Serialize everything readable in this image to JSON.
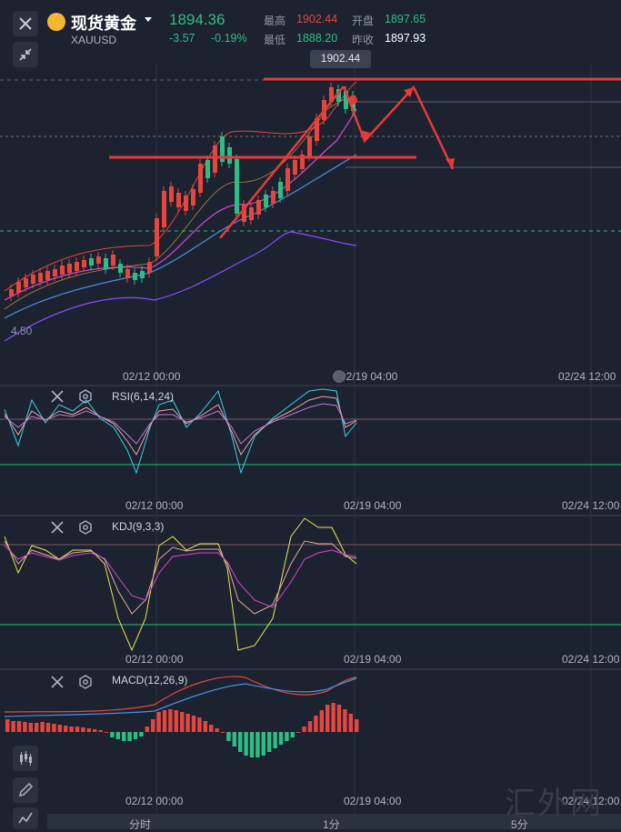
{
  "header": {
    "close_icon": "close-icon",
    "collapse_icon": "collapse-arrows-icon",
    "title": "现货黄金",
    "symbol": "XAUUSD",
    "price": "1894.36",
    "change": "-3.57",
    "change_pct": "-0.19%",
    "high_label": "最高",
    "high_value": "1902.44",
    "open_label": "开盘",
    "open_value": "1897.65",
    "low_label": "最低",
    "low_value": "1888.20",
    "prev_label": "昨收",
    "prev_value": "1897.93"
  },
  "main_chart": {
    "high_marker": "1902.44",
    "left_axis_label": "4.50",
    "ticks": [
      "02/12 00:00",
      "02/19 04:00",
      "02/24 12:00"
    ]
  },
  "rsi": {
    "label": "RSI(6,14,24)",
    "ticks": [
      "02/12 00:00",
      "02/19 04:00",
      "02/24 12:00"
    ]
  },
  "kdj": {
    "label": "KDJ(9,3,3)",
    "ticks": [
      "02/12 00:00",
      "02/19 04:00",
      "02/24 12:00"
    ]
  },
  "macd": {
    "label": "MACD(12,26,9)",
    "ticks": [
      "02/12 00:00",
      "02/19 04:00",
      "02/24 12:00"
    ]
  },
  "tools": [
    "candlestick-icon",
    "pencil-icon",
    "indicator-icon"
  ],
  "bottom_tabs": [
    "分时",
    "1分",
    "5分"
  ],
  "watermark": "汇外网",
  "colors": {
    "up": "#e5473f",
    "down": "#2ebd85",
    "background": "#1c2230",
    "annotation": "#e83a3a"
  }
}
